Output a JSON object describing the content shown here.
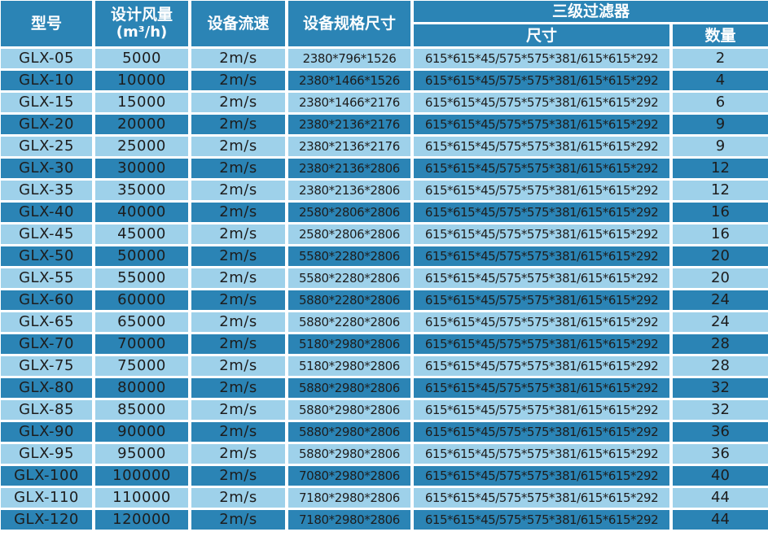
{
  "header": {
    "model": "型号",
    "flow_line1": "设计风量",
    "flow_line2": "(m³/h)",
    "speed": "设备流速",
    "dimensions": "设备规格尺寸",
    "filter_group": "三级过滤器",
    "filter_size": "尺寸",
    "filter_qty": "数量"
  },
  "rows": [
    {
      "model": "GLX-05",
      "flow": "5000",
      "speed": "2m/s",
      "dim": "2380*796*1526",
      "fsize": "615*615*45/575*575*381/615*615*292",
      "qty": "2"
    },
    {
      "model": "GLX-10",
      "flow": "10000",
      "speed": "2m/s",
      "dim": "2380*1466*1526",
      "fsize": "615*615*45/575*575*381/615*615*292",
      "qty": "4"
    },
    {
      "model": "GLX-15",
      "flow": "15000",
      "speed": "2m/s",
      "dim": "2380*1466*2176",
      "fsize": "615*615*45/575*575*381/615*615*292",
      "qty": "6"
    },
    {
      "model": "GLX-20",
      "flow": "20000",
      "speed": "2m/s",
      "dim": "2380*2136*2176",
      "fsize": "615*615*45/575*575*381/615*615*292",
      "qty": "9"
    },
    {
      "model": "GLX-25",
      "flow": "25000",
      "speed": "2m/s",
      "dim": "2380*2136*2176",
      "fsize": "615*615*45/575*575*381/615*615*292",
      "qty": "9"
    },
    {
      "model": "GLX-30",
      "flow": "30000",
      "speed": "2m/s",
      "dim": "2380*2136*2806",
      "fsize": "615*615*45/575*575*381/615*615*292",
      "qty": "12"
    },
    {
      "model": "GLX-35",
      "flow": "35000",
      "speed": "2m/s",
      "dim": "2380*2136*2806",
      "fsize": "615*615*45/575*575*381/615*615*292",
      "qty": "12"
    },
    {
      "model": "GLX-40",
      "flow": "40000",
      "speed": "2m/s",
      "dim": "2580*2806*2806",
      "fsize": "615*615*45/575*575*381/615*615*292",
      "qty": "16"
    },
    {
      "model": "GLX-45",
      "flow": "45000",
      "speed": "2m/s",
      "dim": "2580*2806*2806",
      "fsize": "615*615*45/575*575*381/615*615*292",
      "qty": "16"
    },
    {
      "model": "GLX-50",
      "flow": "50000",
      "speed": "2m/s",
      "dim": "5580*2280*2806",
      "fsize": "615*615*45/575*575*381/615*615*292",
      "qty": "20"
    },
    {
      "model": "GLX-55",
      "flow": "55000",
      "speed": "2m/s",
      "dim": "5580*2280*2806",
      "fsize": "615*615*45/575*575*381/615*615*292",
      "qty": "20"
    },
    {
      "model": "GLX-60",
      "flow": "60000",
      "speed": "2m/s",
      "dim": "5880*2280*2806",
      "fsize": "615*615*45/575*575*381/615*615*292",
      "qty": "24"
    },
    {
      "model": "GLX-65",
      "flow": "65000",
      "speed": "2m/s",
      "dim": "5880*2280*2806",
      "fsize": "615*615*45/575*575*381/615*615*292",
      "qty": "24"
    },
    {
      "model": "GLX-70",
      "flow": "70000",
      "speed": "2m/s",
      "dim": "5180*2980*2806",
      "fsize": "615*615*45/575*575*381/615*615*292",
      "qty": "28"
    },
    {
      "model": "GLX-75",
      "flow": "75000",
      "speed": "2m/s",
      "dim": "5180*2980*2806",
      "fsize": "615*615*45/575*575*381/615*615*292",
      "qty": "28"
    },
    {
      "model": "GLX-80",
      "flow": "80000",
      "speed": "2m/s",
      "dim": "5880*2980*2806",
      "fsize": "615*615*45/575*575*381/615*615*292",
      "qty": "32"
    },
    {
      "model": "GLX-85",
      "flow": "85000",
      "speed": "2m/s",
      "dim": "5880*2980*2806",
      "fsize": "615*615*45/575*575*381/615*615*292",
      "qty": "32"
    },
    {
      "model": "GLX-90",
      "flow": "90000",
      "speed": "2m/s",
      "dim": "5880*2980*2806",
      "fsize": "615*615*45/575*575*381/615*615*292",
      "qty": "36"
    },
    {
      "model": "GLX-95",
      "flow": "95000",
      "speed": "2m/s",
      "dim": "5880*2980*2806",
      "fsize": "615*615*45/575*575*381/615*615*292",
      "qty": "36"
    },
    {
      "model": "GLX-100",
      "flow": "100000",
      "speed": "2m/s",
      "dim": "7080*2980*2806",
      "fsize": "615*615*45/575*575*381/615*615*292",
      "qty": "40"
    },
    {
      "model": "GLX-110",
      "flow": "110000",
      "speed": "2m/s",
      "dim": "7180*2980*2806",
      "fsize": "615*615*45/575*575*381/615*615*292",
      "qty": "44"
    },
    {
      "model": "GLX-120",
      "flow": "120000",
      "speed": "2m/s",
      "dim": "7180*2980*2806",
      "fsize": "615*615*45/575*575*381/615*615*292",
      "qty": "44"
    }
  ],
  "colors": {
    "header_bg": "#2b84b5",
    "row_light": "#9ed1ea",
    "row_dark": "#2b84b5",
    "header_text": "#ffffff",
    "cell_text": "#1d1d1d"
  }
}
